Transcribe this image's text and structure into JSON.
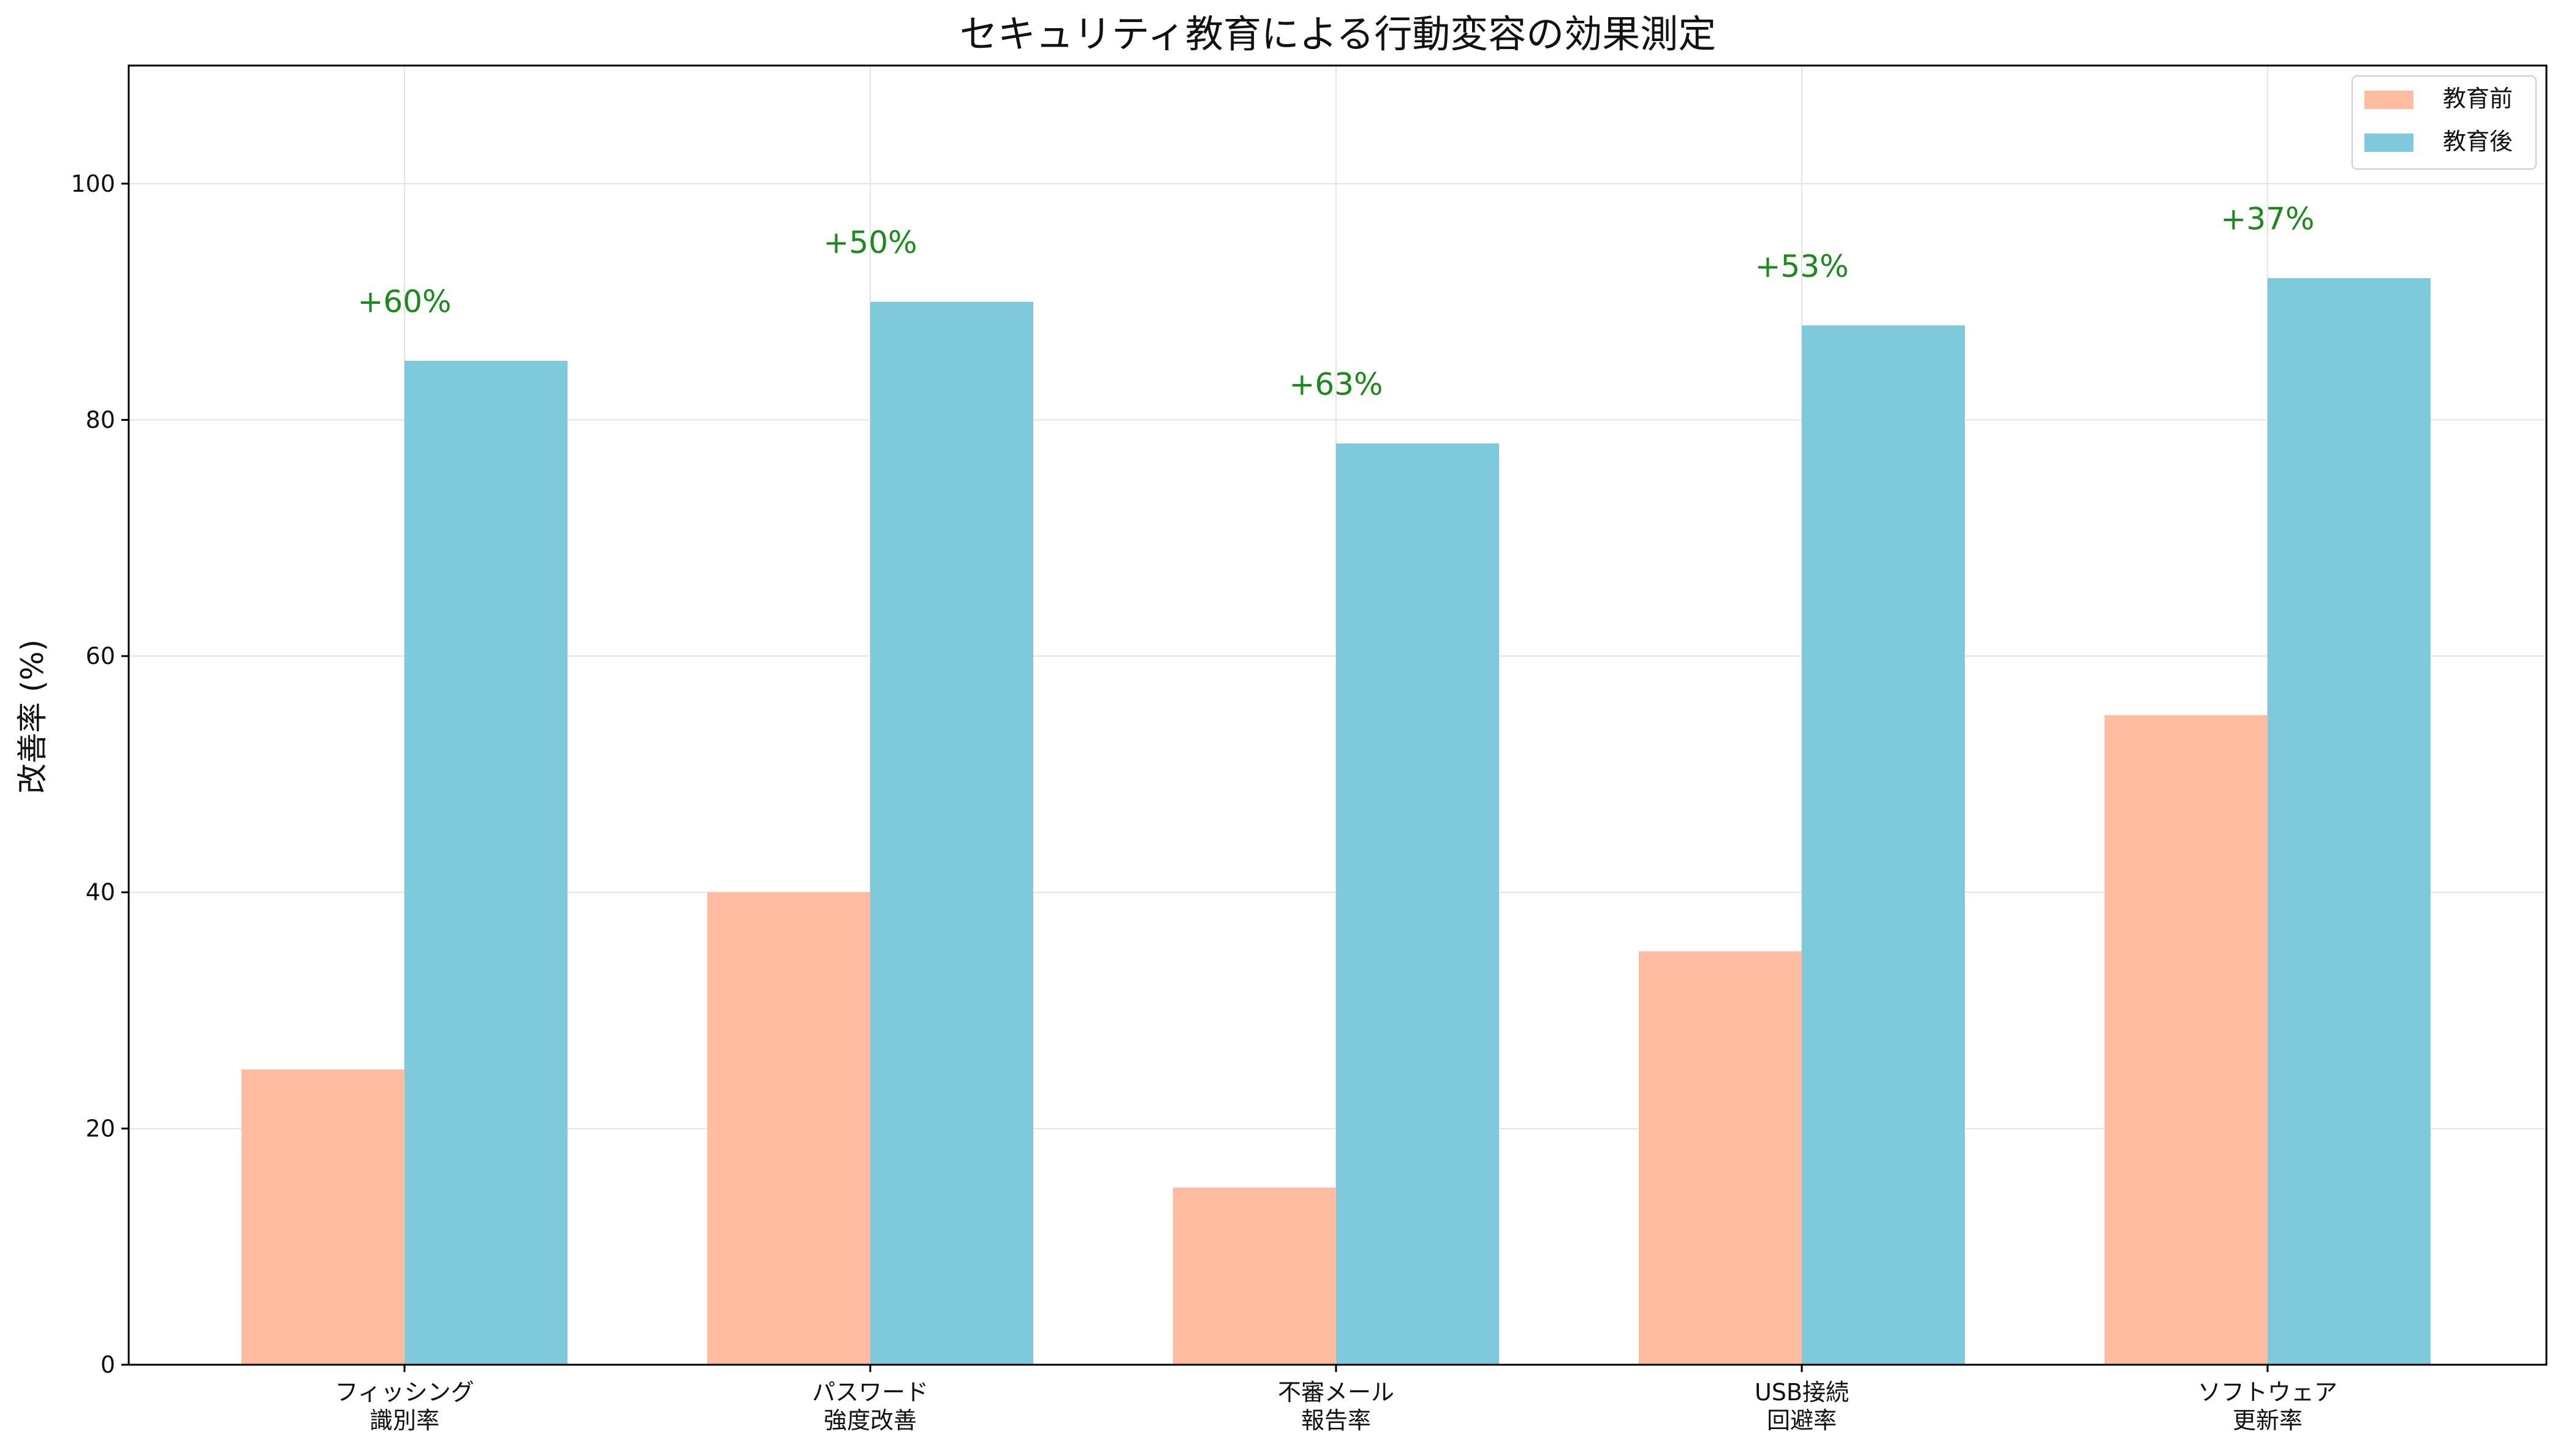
{
  "chart_data": {
    "type": "bar",
    "title": "セキュリティ教育による行動変容の効果測定",
    "xlabel": "",
    "ylabel": "改善率 (%)",
    "ylim": [
      0,
      110
    ],
    "yticks": [
      0,
      20,
      40,
      60,
      80,
      100
    ],
    "grid": true,
    "legend_position": "top-right",
    "categories": [
      [
        "フィッシング",
        "識別率"
      ],
      [
        "パスワード",
        "強度改善"
      ],
      [
        "不審メール",
        "報告率"
      ],
      [
        "USB接続",
        "回避率"
      ],
      [
        "ソフトウェア",
        "更新率"
      ]
    ],
    "series": [
      {
        "name": "教育前",
        "color": "#FFBCA0",
        "values": [
          25,
          40,
          15,
          35,
          55
        ]
      },
      {
        "name": "教育後",
        "color": "#7ECADC",
        "values": [
          85,
          90,
          78,
          88,
          92
        ]
      }
    ],
    "annotations": [
      "+60%",
      "+50%",
      "+63%",
      "+53%",
      "+37%"
    ],
    "annotation_color": "#1a8a1a"
  }
}
